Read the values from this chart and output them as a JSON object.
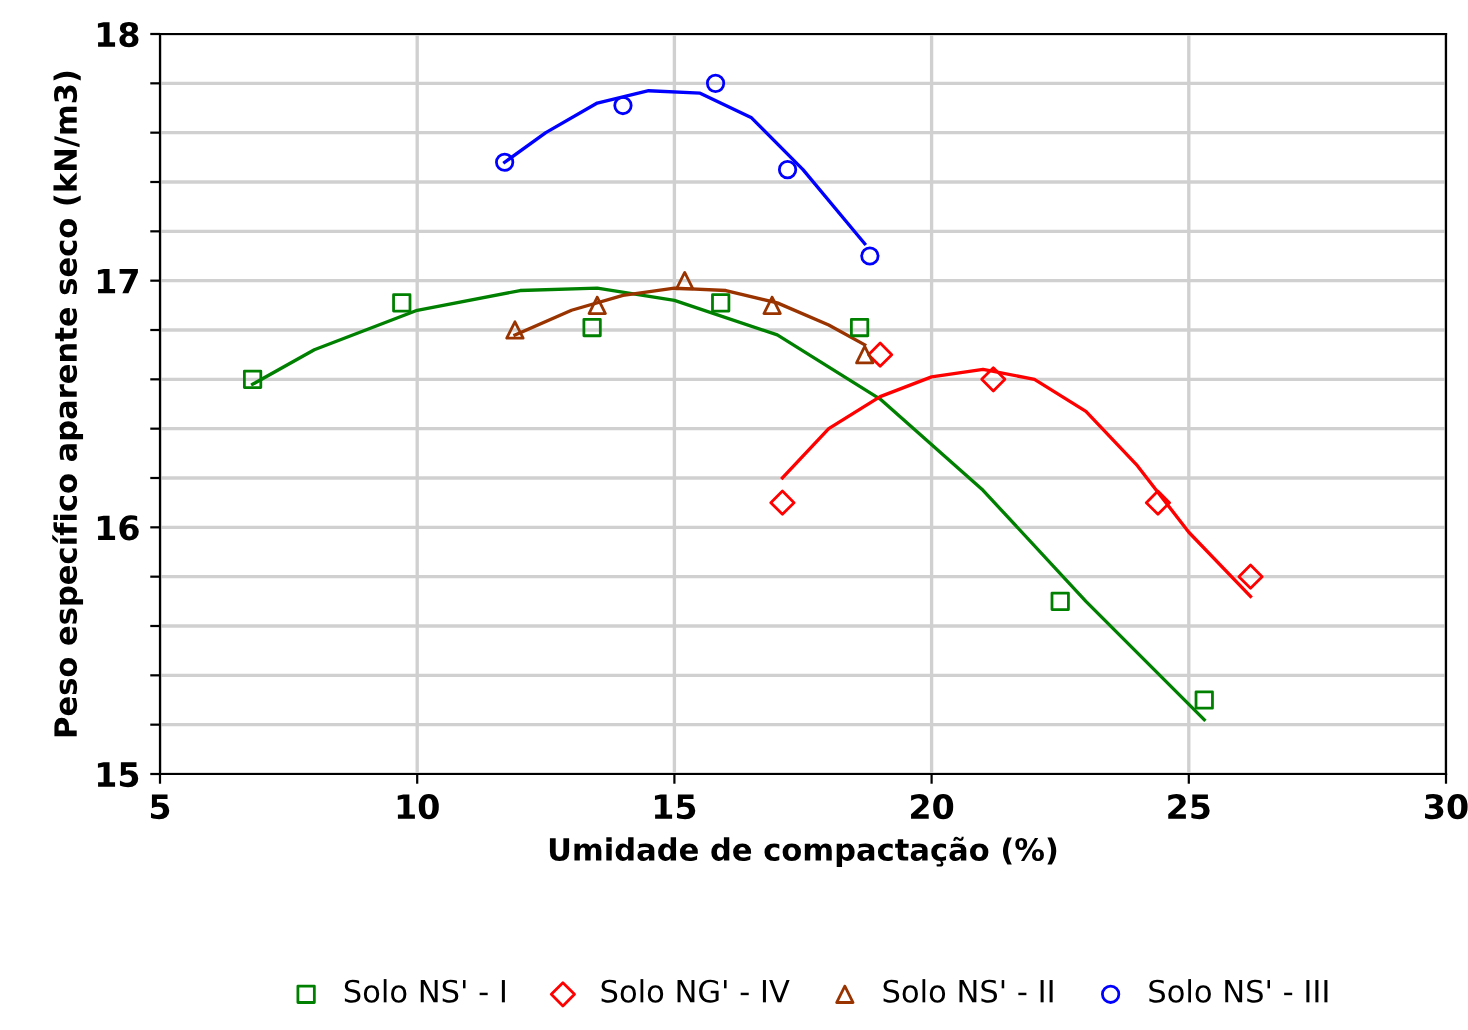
{
  "chart_data": {
    "type": "scatter",
    "xlabel": "Umidade de compactação (%)",
    "ylabel": "Peso específico aparente seco (kN/m3)",
    "xlim": [
      5,
      30
    ],
    "xticks": [
      5,
      10,
      15,
      20,
      25,
      30
    ],
    "ylim": [
      15,
      18
    ],
    "yticks": [
      15,
      {
        "value": 15.2,
        "label": null
      },
      {
        "value": 15.4,
        "label": null
      },
      {
        "value": 15.6,
        "label": null
      },
      {
        "value": 15.8,
        "label": null
      },
      16,
      {
        "value": 16.2,
        "label": null
      },
      {
        "value": 16.4,
        "label": null
      },
      {
        "value": 16.6,
        "label": null
      },
      {
        "value": 16.8,
        "label": null
      },
      17,
      {
        "value": 17.2,
        "label": null
      },
      {
        "value": 17.4,
        "label": null
      },
      {
        "value": 17.6,
        "label": null
      },
      {
        "value": 17.8,
        "label": null
      },
      18
    ],
    "grid": true,
    "legend": "bottom",
    "series": [
      {
        "name": "Solo NS' - I",
        "marker": "square",
        "color": "#008000",
        "x": [
          6.8,
          9.7,
          13.4,
          15.9,
          18.6,
          22.5,
          25.3
        ],
        "values": [
          16.6,
          16.91,
          16.81,
          16.91,
          16.81,
          15.7,
          15.3
        ]
      },
      {
        "name": "Solo NG' - IV",
        "marker": "diamond",
        "color": "#ff0000",
        "x": [
          17.1,
          19.0,
          21.2,
          24.4,
          26.2
        ],
        "values": [
          16.1,
          16.7,
          16.6,
          16.1,
          15.8
        ]
      },
      {
        "name": "Solo NS' - II",
        "marker": "triangle",
        "color": "#993300",
        "x": [
          11.9,
          13.5,
          15.2,
          16.9,
          18.7
        ],
        "values": [
          16.8,
          16.9,
          17.0,
          16.9,
          16.7
        ]
      },
      {
        "name": "Solo NS' - III",
        "marker": "circle",
        "color": "#0000ff",
        "x": [
          11.7,
          14.0,
          15.8,
          17.2,
          18.8
        ],
        "values": [
          17.48,
          17.71,
          17.8,
          17.45,
          17.1
        ]
      },
      {
        "type": "line",
        "marker": "none",
        "color": "#008000",
        "x": [
          6.8,
          8,
          10,
          12,
          13.5,
          15,
          17,
          19,
          21,
          23,
          25.3
        ],
        "values": [
          16.58,
          16.72,
          16.88,
          16.96,
          16.97,
          16.92,
          16.78,
          16.52,
          16.15,
          15.7,
          15.22
        ]
      },
      {
        "type": "line",
        "marker": "none",
        "color": "#ff0000",
        "x": [
          17.1,
          18,
          19,
          20,
          21,
          22,
          23,
          24,
          25,
          26.2
        ],
        "values": [
          16.2,
          16.4,
          16.53,
          16.61,
          16.64,
          16.6,
          16.47,
          16.25,
          15.98,
          15.72
        ]
      },
      {
        "type": "line",
        "marker": "none",
        "color": "#993300",
        "x": [
          11.9,
          13,
          14,
          15,
          16,
          17,
          18,
          18.7
        ],
        "values": [
          16.78,
          16.88,
          16.94,
          16.97,
          16.96,
          16.91,
          16.82,
          16.74
        ]
      },
      {
        "type": "line",
        "marker": "none",
        "color": "#0000ff",
        "x": [
          11.7,
          12.5,
          13.5,
          14.5,
          15.5,
          16.5,
          17.5,
          18.7
        ],
        "values": [
          17.48,
          17.6,
          17.72,
          17.77,
          17.76,
          17.66,
          17.45,
          17.15
        ]
      }
    ]
  }
}
